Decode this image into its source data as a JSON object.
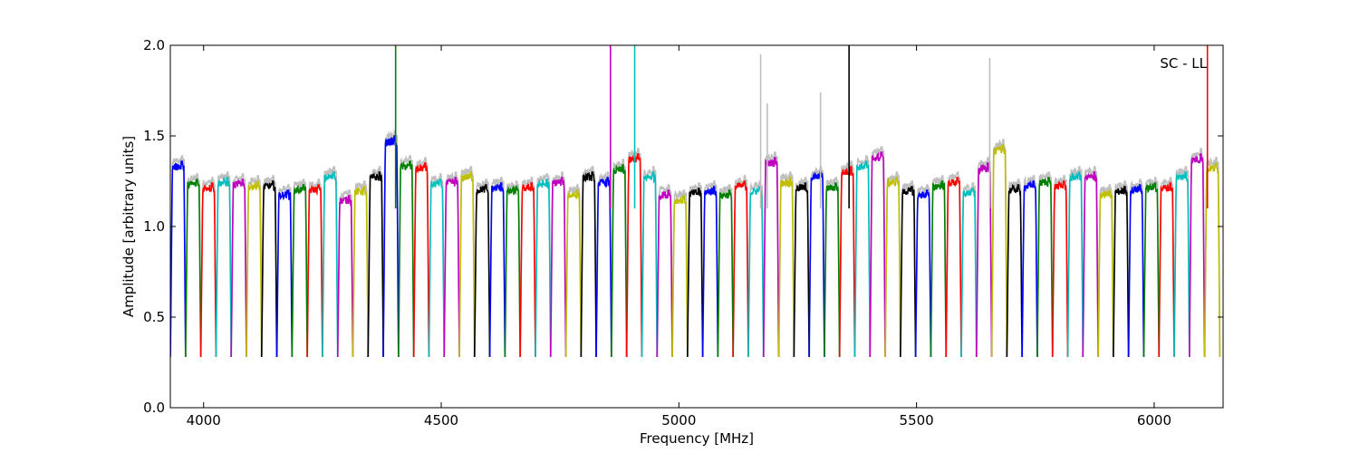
{
  "chart_data": {
    "type": "line",
    "title": "",
    "xlabel": "Frequency [MHz]",
    "ylabel": "Amplitude [arbitrary units]",
    "annotation": "SC - LL",
    "annotation_position": "top-right",
    "xlim": [
      3930,
      6145
    ],
    "ylim": [
      0.0,
      2.0
    ],
    "xticks": [
      4000,
      4500,
      5000,
      5500,
      6000
    ],
    "xtick_labels": [
      "4000",
      "4500",
      "5000",
      "5500",
      "6000"
    ],
    "yticks": [
      0.0,
      0.5,
      1.0,
      1.5,
      2.0
    ],
    "ytick_labels": [
      "0.0",
      "0.5",
      "1.0",
      "1.5",
      "2.0"
    ],
    "grid": false,
    "legend": "none",
    "band_width_mhz": 32,
    "band_colors": [
      "#0000ff",
      "#008000",
      "#ff0000",
      "#00bfbf",
      "#bf00bf",
      "#bfbf00",
      "#000000"
    ],
    "background_trace_color": "#bfbfbf",
    "band_starts": [
      3930,
      3962,
      3994,
      4026,
      4058,
      4090,
      4122,
      4154,
      4186,
      4218,
      4250,
      4282,
      4314,
      4346,
      4378,
      4410,
      4442,
      4474,
      4506,
      4538,
      4570,
      4602,
      4634,
      4666,
      4698,
      4730,
      4762,
      4794,
      4826,
      4858,
      4890,
      4922,
      4954,
      4986,
      5018,
      5050,
      5082,
      5114,
      5146,
      5178,
      5210,
      5242,
      5274,
      5306,
      5338,
      5370,
      5402,
      5434,
      5466,
      5498,
      5530,
      5562,
      5594,
      5626,
      5658,
      5690,
      5722,
      5754,
      5786,
      5818,
      5850,
      5882,
      5914,
      5946,
      5978,
      6010,
      6042,
      6074,
      6106
    ],
    "band_peaks": [
      1.36,
      1.26,
      1.24,
      1.27,
      1.26,
      1.25,
      1.25,
      1.2,
      1.23,
      1.23,
      1.3,
      1.17,
      1.22,
      1.3,
      1.5,
      1.36,
      1.35,
      1.26,
      1.27,
      1.3,
      1.23,
      1.24,
      1.22,
      1.24,
      1.26,
      1.27,
      1.2,
      1.3,
      1.27,
      1.34,
      1.4,
      1.3,
      1.2,
      1.17,
      1.21,
      1.22,
      1.2,
      1.25,
      1.22,
      1.38,
      1.27,
      1.24,
      1.3,
      1.24,
      1.33,
      1.36,
      1.41,
      1.27,
      1.22,
      1.2,
      1.25,
      1.27,
      1.21,
      1.35,
      1.45,
      1.23,
      1.25,
      1.27,
      1.25,
      1.3,
      1.3,
      1.2,
      1.22,
      1.23,
      1.24,
      1.24,
      1.3,
      1.4,
      1.35
    ],
    "spikes": [
      {
        "x": 4404,
        "y": 2.0,
        "color": "#008000"
      },
      {
        "x": 4856,
        "y": 2.0,
        "color": "#bf00bf"
      },
      {
        "x": 4907,
        "y": 2.0,
        "color": "#00bfbf"
      },
      {
        "x": 5358,
        "y": 2.0,
        "color": "#000000"
      },
      {
        "x": 6112,
        "y": 2.0,
        "color": "#ff0000"
      },
      {
        "x": 5172,
        "y": 1.95,
        "color": "#bfbfbf"
      },
      {
        "x": 5186,
        "y": 1.68,
        "color": "#bfbfbf"
      },
      {
        "x": 5298,
        "y": 1.74,
        "color": "#bfbfbf"
      },
      {
        "x": 5654,
        "y": 1.93,
        "color": "#bfbfbf"
      }
    ]
  }
}
